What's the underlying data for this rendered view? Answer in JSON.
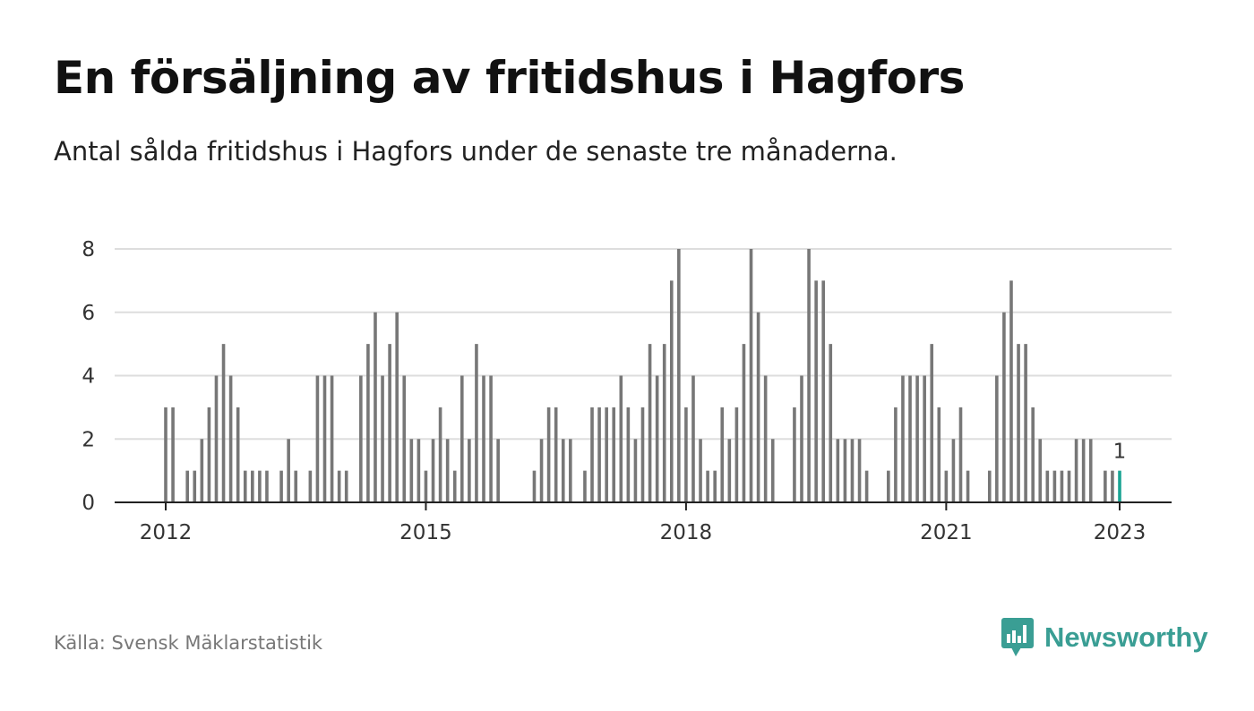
{
  "header": {
    "title": "En försäljning av fritidshus i Hagfors",
    "subtitle": "Antal sålda fritidshus i Hagfors under de senaste tre månaderna."
  },
  "footer": {
    "source": "Källa: Svensk Mäklarstatistik",
    "brand": "Newsworthy",
    "brand_icon": "bar-chart-speech-bubble-icon"
  },
  "colors": {
    "bar": "#777777",
    "highlight": "#1aa594",
    "grid": "#dddddd",
    "axis": "#222222",
    "brand": "#3a9e94"
  },
  "chart_data": {
    "type": "bar",
    "title": "En försäljning av fritidshus i Hagfors",
    "subtitle": "Antal sålda fritidshus i Hagfors under de senaste tre månaderna.",
    "xlabel": "",
    "ylabel": "",
    "ylim": [
      0,
      8
    ],
    "yticks": [
      "0",
      "2",
      "4",
      "6",
      "8"
    ],
    "xticks": [
      "2012",
      "2015",
      "2018",
      "2021",
      "2023"
    ],
    "grid": true,
    "legend": "none",
    "x_start": "2012-01",
    "x_end": "2023-01",
    "values": [
      3,
      3,
      0,
      1,
      1,
      2,
      3,
      4,
      5,
      4,
      3,
      1,
      1,
      1,
      1,
      0,
      1,
      2,
      1,
      0,
      1,
      4,
      4,
      4,
      1,
      1,
      0,
      4,
      5,
      6,
      4,
      5,
      6,
      4,
      2,
      2,
      1,
      2,
      3,
      2,
      1,
      4,
      2,
      5,
      4,
      4,
      2,
      0,
      0,
      0,
      0,
      1,
      2,
      3,
      3,
      2,
      2,
      0,
      1,
      3,
      3,
      3,
      3,
      4,
      3,
      2,
      3,
      5,
      4,
      5,
      7,
      8,
      3,
      4,
      2,
      1,
      1,
      3,
      2,
      3,
      5,
      8,
      6,
      4,
      2,
      0,
      0,
      3,
      4,
      8,
      7,
      7,
      5,
      2,
      2,
      2,
      2,
      1,
      0,
      0,
      1,
      3,
      4,
      4,
      4,
      4,
      5,
      3,
      1,
      2,
      3,
      1,
      0,
      0,
      1,
      4,
      6,
      7,
      5,
      5,
      3,
      2,
      1,
      1,
      1,
      1,
      2,
      2,
      2,
      0,
      1,
      1,
      1
    ],
    "highlight_index": 132,
    "highlight_label": "1"
  }
}
